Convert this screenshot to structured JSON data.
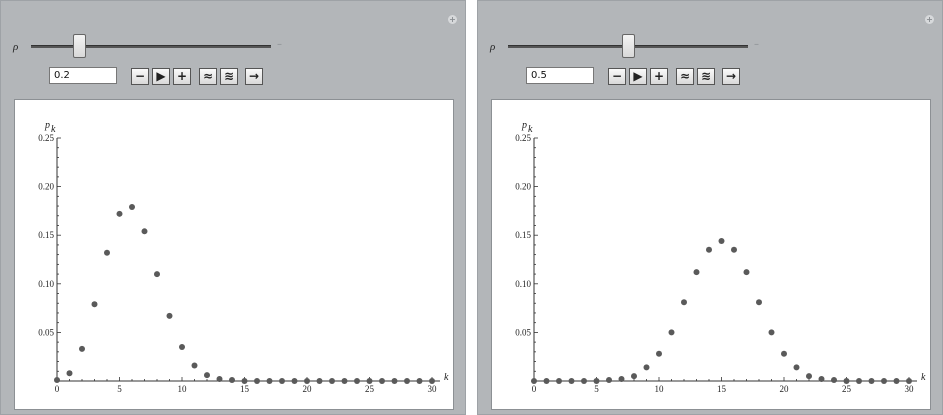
{
  "panels": [
    {
      "param_symbol": "ρ",
      "value": "0.2",
      "slider_value": 0.2,
      "controls": [
        "−",
        "▶",
        "+",
        "≈",
        "≋",
        "→"
      ],
      "chart_data": {
        "type": "scatter",
        "ylabel": "p",
        "ylabel_sub": "k",
        "xlabel": "k",
        "xlim": [
          0,
          30
        ],
        "ylim": [
          0,
          0.25
        ],
        "xticks": [
          0,
          5,
          10,
          15,
          20,
          25,
          30
        ],
        "yticks": [
          "0.05",
          "0.10",
          "0.15",
          "0.20",
          "0.25"
        ],
        "x": [
          0,
          1,
          2,
          3,
          4,
          5,
          6,
          7,
          8,
          9,
          10,
          11,
          12,
          13,
          14,
          15,
          16,
          17,
          18,
          19,
          20,
          21,
          22,
          23,
          24,
          25,
          26,
          27,
          28,
          29,
          30
        ],
        "y": [
          0.001,
          0.008,
          0.033,
          0.079,
          0.132,
          0.172,
          0.179,
          0.154,
          0.11,
          0.067,
          0.035,
          0.016,
          0.006,
          0.002,
          0.001,
          0,
          0,
          0,
          0,
          0,
          0,
          0,
          0,
          0,
          0,
          0,
          0,
          0,
          0,
          0,
          0
        ]
      }
    },
    {
      "param_symbol": "ρ",
      "value": "0.5",
      "slider_value": 0.5,
      "controls": [
        "−",
        "▶",
        "+",
        "≈",
        "≋",
        "→"
      ],
      "chart_data": {
        "type": "scatter",
        "ylabel": "p",
        "ylabel_sub": "k",
        "xlabel": "k",
        "xlim": [
          0,
          30
        ],
        "ylim": [
          0,
          0.25
        ],
        "xticks": [
          0,
          5,
          10,
          15,
          20,
          25,
          30
        ],
        "yticks": [
          "0.05",
          "0.10",
          "0.15",
          "0.20",
          "0.25"
        ],
        "x": [
          0,
          1,
          2,
          3,
          4,
          5,
          6,
          7,
          8,
          9,
          10,
          11,
          12,
          13,
          14,
          15,
          16,
          17,
          18,
          19,
          20,
          21,
          22,
          23,
          24,
          25,
          26,
          27,
          28,
          29,
          30
        ],
        "y": [
          0,
          0,
          0,
          0,
          0,
          0,
          0.001,
          0.002,
          0.005,
          0.014,
          0.028,
          0.05,
          0.081,
          0.112,
          0.135,
          0.144,
          0.135,
          0.112,
          0.081,
          0.05,
          0.028,
          0.014,
          0.005,
          0.002,
          0.001,
          0,
          0,
          0,
          0,
          0,
          0
        ]
      }
    }
  ]
}
